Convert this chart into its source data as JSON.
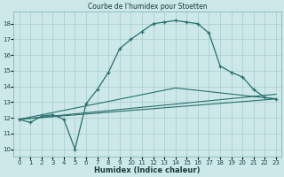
{
  "title": "Courbe de l'humidex pour Stoetten",
  "xlabel": "Humidex (Indice chaleur)",
  "bg_color": "#cce8e8",
  "grid_color": "#aacccc",
  "line_color": "#2a6e6e",
  "xlim": [
    -0.5,
    23.5
  ],
  "ylim": [
    9.5,
    18.8
  ],
  "yticks": [
    10,
    11,
    12,
    13,
    14,
    15,
    16,
    17,
    18
  ],
  "xticks": [
    0,
    1,
    2,
    3,
    4,
    5,
    6,
    7,
    8,
    9,
    10,
    11,
    12,
    13,
    14,
    15,
    16,
    17,
    18,
    19,
    20,
    21,
    22,
    23
  ],
  "curve1_x": [
    0,
    1,
    2,
    3,
    4,
    5,
    6,
    7,
    8,
    9,
    10,
    11,
    12,
    13,
    14,
    15,
    16,
    17,
    18,
    19,
    20,
    21,
    22,
    23
  ],
  "curve1_y": [
    11.9,
    11.7,
    12.1,
    12.2,
    11.9,
    10.0,
    12.9,
    13.8,
    14.9,
    16.4,
    17.0,
    17.5,
    18.0,
    18.1,
    18.2,
    18.1,
    18.0,
    17.4,
    15.3,
    14.9,
    14.6,
    13.8,
    13.3,
    13.2
  ],
  "curve2_x": [
    0,
    23
  ],
  "curve2_y": [
    11.9,
    13.2
  ],
  "curve3_x": [
    0,
    14,
    23
  ],
  "curve3_y": [
    11.9,
    13.9,
    13.2
  ],
  "curve4_x": [
    0,
    23
  ],
  "curve4_y": [
    11.9,
    13.5
  ]
}
